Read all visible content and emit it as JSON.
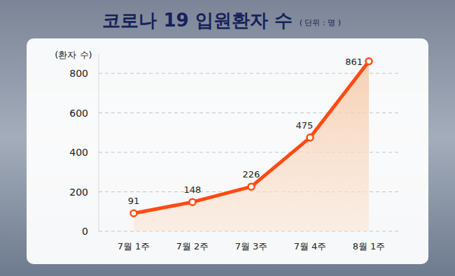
{
  "chart_data": {
    "type": "line",
    "title": "코로나 19 입원환자 수",
    "subtitle": "( 단위 : 명 )",
    "ylabel": "(환자 수)",
    "categories": [
      "7월 1주",
      "7월 2주",
      "7월 3주",
      "7월 4주",
      "8월 1주"
    ],
    "values": [
      91,
      148,
      226,
      475,
      861
    ],
    "color": "#ff4b12",
    "ylim": [
      0,
      900
    ],
    "yticks": [
      0,
      200,
      400,
      600,
      800
    ],
    "grid": true,
    "data_labels": true,
    "marker": "circle"
  }
}
